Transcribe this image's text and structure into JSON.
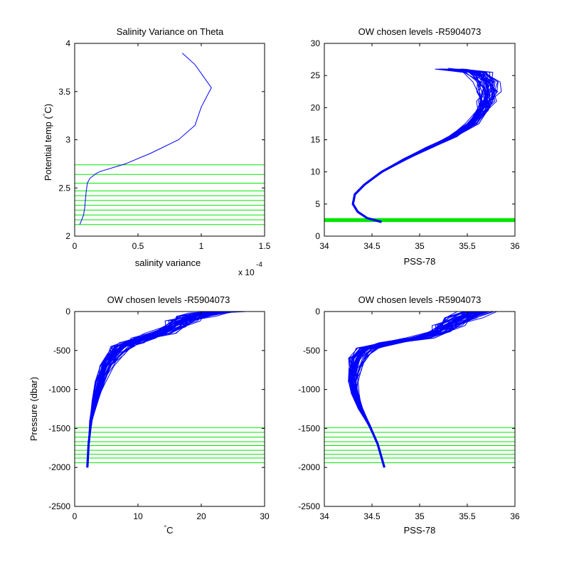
{
  "colors": {
    "profile": "#0000ff",
    "levels": "#00e600",
    "axes": "#000000",
    "background": "#ffffff"
  },
  "chart_data": [
    {
      "type": "line",
      "title": "Salinity Variance on Theta",
      "xlabel": "salinity variance",
      "ylabel": "Potential temp (",
      "ylabel_unit": "C)",
      "x_exponent": "x 10",
      "x_exponent_power": "-4",
      "xlim": [
        0,
        1.5
      ],
      "ylim": [
        2,
        4
      ],
      "xticks": [
        "0",
        "0.5",
        "1",
        "1.5"
      ],
      "xtick_values": [
        0,
        0.5,
        1,
        1.5
      ],
      "yticks": [
        "2",
        "2.5",
        "3",
        "3.5",
        "4"
      ],
      "ytick_values": [
        2,
        2.5,
        3,
        3.5,
        4
      ],
      "series": [
        {
          "x": [
            0.85,
            0.95,
            1.08,
            1.0,
            0.95,
            0.82,
            0.6,
            0.4,
            0.2,
            0.17,
            0.12,
            0.1,
            0.09,
            0.085,
            0.08,
            0.07,
            0.05,
            0.04
          ],
          "y": [
            3.9,
            3.78,
            3.54,
            3.34,
            3.15,
            3.0,
            2.86,
            2.75,
            2.67,
            2.65,
            2.6,
            2.55,
            2.45,
            2.38,
            2.3,
            2.22,
            2.15,
            2.12
          ]
        }
      ],
      "hlines": [
        2.12,
        2.17,
        2.22,
        2.27,
        2.32,
        2.37,
        2.42,
        2.47,
        2.55,
        2.64,
        2.74
      ]
    },
    {
      "type": "line",
      "title": "OW chosen levels -R5904073",
      "xlabel": "PSS-78",
      "ylabel": "",
      "xlim": [
        34,
        36
      ],
      "ylim": [
        0,
        30
      ],
      "xticks": [
        "34",
        "34.5",
        "35",
        "35.5",
        "36"
      ],
      "xtick_values": [
        34,
        34.5,
        35,
        35.5,
        36
      ],
      "yticks": [
        "0",
        "5",
        "10",
        "15",
        "20",
        "25",
        "30"
      ],
      "ytick_values": [
        0,
        5,
        10,
        15,
        20,
        25,
        30
      ],
      "profile": {
        "x": [
          34.6,
          34.45,
          34.35,
          34.3,
          34.32,
          34.42,
          34.6,
          34.85,
          35.1,
          35.35,
          35.55,
          35.65,
          35.7,
          35.72,
          35.7,
          35.6,
          35.3
        ],
        "y": [
          2.2,
          2.8,
          3.8,
          5.0,
          6.5,
          8.0,
          10.0,
          12.0,
          13.8,
          15.5,
          17.5,
          19.5,
          21.0,
          22.5,
          24.0,
          25.5,
          26.0
        ]
      },
      "profile_spread_top": 0.25,
      "profile_count": 40,
      "level_band": [
        2.2,
        2.8
      ]
    },
    {
      "type": "line",
      "title": "OW chosen levels -R5904073",
      "xlabel": "C",
      "xlabel_degree": "°",
      "ylabel": "Pressure (dbar)",
      "xlim": [
        0,
        30
      ],
      "ylim": [
        -2500,
        0
      ],
      "xticks": [
        "0",
        "10",
        "20",
        "30"
      ],
      "xtick_values": [
        0,
        10,
        20,
        30
      ],
      "yticks": [
        "-2500",
        "-2000",
        "-1500",
        "-1000",
        "-500",
        "0"
      ],
      "ytick_values": [
        -2500,
        -2000,
        -1500,
        -1000,
        -500,
        0
      ],
      "profile": {
        "x": [
          2.0,
          2.2,
          2.6,
          3.2,
          4.0,
          5.0,
          6.2,
          7.5,
          9.0,
          11.0,
          13.5,
          15.5,
          17.0,
          19.0,
          21.0,
          24.0
        ],
        "y": [
          -2000,
          -1700,
          -1400,
          -1150,
          -900,
          -700,
          -550,
          -450,
          -400,
          -340,
          -280,
          -200,
          -120,
          -60,
          -20,
          0
        ]
      },
      "profile_spread_top": 4.5,
      "profile_count": 40,
      "hlines": [
        -1490,
        -1550,
        -1610,
        -1670,
        -1720,
        -1780,
        -1830,
        -1880,
        -1940
      ]
    },
    {
      "type": "line",
      "title": "OW chosen levels -R5904073",
      "xlabel": "PSS-78",
      "ylabel": "",
      "xlim": [
        34,
        36
      ],
      "ylim": [
        -2500,
        0
      ],
      "xticks": [
        "34",
        "34.5",
        "35",
        "35.5",
        "36"
      ],
      "xtick_values": [
        34,
        34.5,
        35,
        35.5,
        36
      ],
      "yticks": [
        "-2500",
        "-2000",
        "-1500",
        "-1000",
        "-500",
        "0"
      ],
      "ytick_values": [
        -2500,
        -2000,
        -1500,
        -1000,
        -500,
        0
      ],
      "profile": {
        "x": [
          34.63,
          34.56,
          34.47,
          34.38,
          34.32,
          34.3,
          34.31,
          34.35,
          34.45,
          34.7,
          35.0,
          35.2,
          35.3,
          35.45,
          35.6
        ],
        "y": [
          -2000,
          -1700,
          -1450,
          -1250,
          -1050,
          -900,
          -750,
          -600,
          -470,
          -400,
          -340,
          -260,
          -180,
          -80,
          0
        ]
      },
      "profile_spread_top": 0.3,
      "profile_count": 40,
      "hlines": [
        -1490,
        -1550,
        -1610,
        -1670,
        -1720,
        -1780,
        -1830,
        -1880,
        -1940
      ]
    }
  ]
}
